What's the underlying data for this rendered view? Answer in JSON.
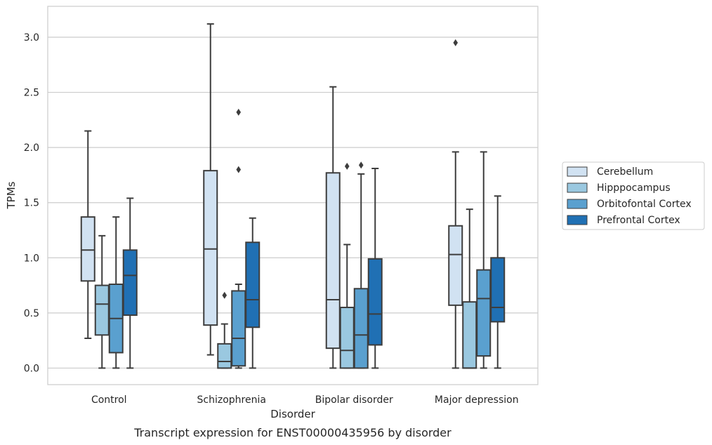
{
  "caption": "Transcript expression for ENST00000435956 by disorder",
  "chart_data": {
    "type": "box",
    "xlabel": "Disorder",
    "ylabel": "TPMs",
    "ylim": [
      -0.15,
      3.28
    ],
    "yticks": [
      "0.0",
      "0.5",
      "1.0",
      "1.5",
      "2.0",
      "2.5",
      "3.0"
    ],
    "grid": "horizontal",
    "legend_placement": "right",
    "categories": [
      "Control",
      "Schizophrenia",
      "Bipolar disorder",
      "Major depression"
    ],
    "series": [
      {
        "name": "Cerebellum",
        "color": "#d1e2f2",
        "boxes": [
          {
            "whislo": 0.27,
            "q1": 0.79,
            "med": 1.07,
            "q3": 1.37,
            "whishi": 2.15,
            "fliers": []
          },
          {
            "whislo": 0.12,
            "q1": 0.39,
            "med": 1.08,
            "q3": 1.79,
            "whishi": 3.12,
            "fliers": []
          },
          {
            "whislo": 0.0,
            "q1": 0.18,
            "med": 0.62,
            "q3": 1.77,
            "whishi": 2.55,
            "fliers": []
          },
          {
            "whislo": 0.0,
            "q1": 0.57,
            "med": 1.03,
            "q3": 1.29,
            "whishi": 1.96,
            "fliers": [
              2.95
            ]
          }
        ]
      },
      {
        "name": "Hipppocampus",
        "color": "#9ac8e0",
        "boxes": [
          {
            "whislo": 0.0,
            "q1": 0.3,
            "med": 0.58,
            "q3": 0.75,
            "whishi": 1.2,
            "fliers": []
          },
          {
            "whislo": 0.0,
            "q1": 0.0,
            "med": 0.06,
            "q3": 0.22,
            "whishi": 0.4,
            "fliers": [
              0.66
            ]
          },
          {
            "whislo": 0.0,
            "q1": 0.0,
            "med": 0.16,
            "q3": 0.55,
            "whishi": 1.12,
            "fliers": [
              1.83
            ]
          },
          {
            "whislo": 0.0,
            "q1": 0.0,
            "med": 0.0,
            "q3": 0.6,
            "whishi": 1.44,
            "fliers": []
          }
        ]
      },
      {
        "name": "Orbitofontal Cortex",
        "color": "#5aa0cf",
        "boxes": [
          {
            "whislo": 0.0,
            "q1": 0.14,
            "med": 0.45,
            "q3": 0.76,
            "whishi": 1.37,
            "fliers": []
          },
          {
            "whislo": 0.0,
            "q1": 0.02,
            "med": 0.27,
            "q3": 0.7,
            "whishi": 0.76,
            "fliers": [
              1.8,
              2.32
            ]
          },
          {
            "whislo": 0.0,
            "q1": 0.0,
            "med": 0.3,
            "q3": 0.72,
            "whishi": 1.76,
            "fliers": [
              1.84
            ]
          },
          {
            "whislo": 0.0,
            "q1": 0.11,
            "med": 0.63,
            "q3": 0.89,
            "whishi": 1.96,
            "fliers": []
          }
        ]
      },
      {
        "name": "Prefrontal Cortex",
        "color": "#2070b4",
        "boxes": [
          {
            "whislo": 0.0,
            "q1": 0.48,
            "med": 0.84,
            "q3": 1.07,
            "whishi": 1.54,
            "fliers": []
          },
          {
            "whislo": 0.0,
            "q1": 0.37,
            "med": 0.62,
            "q3": 1.14,
            "whishi": 1.36,
            "fliers": []
          },
          {
            "whislo": 0.0,
            "q1": 0.21,
            "med": 0.49,
            "q3": 0.99,
            "whishi": 1.81,
            "fliers": []
          },
          {
            "whislo": 0.0,
            "q1": 0.42,
            "med": 0.55,
            "q3": 1.0,
            "whishi": 1.56,
            "fliers": []
          }
        ]
      }
    ]
  }
}
